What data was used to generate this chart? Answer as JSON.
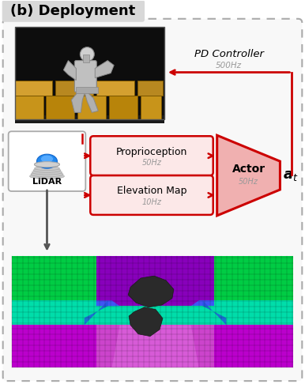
{
  "title": "(b) Deployment",
  "title_bg": "#d8d8d8",
  "outer_bg": "#f8f8f8",
  "box_border": "#aaaaaa",
  "red": "#cc0000",
  "light_red_fill": "#fce8e8",
  "actor_fill": "#f0b0b0",
  "pd_controller_label": "PD Controller",
  "pd_hz": "500Hz",
  "proprioception_label": "Proprioception",
  "proprioception_hz": "50Hz",
  "elevation_label": "Elevation Map",
  "elevation_hz": "10Hz",
  "actor_label": "Actor",
  "actor_hz": "50Hz",
  "at_label": "$\\boldsymbol{a}_t$",
  "lidar_label": "LiDAR",
  "fig_w": 3.86,
  "fig_h": 4.86,
  "dpi": 100
}
